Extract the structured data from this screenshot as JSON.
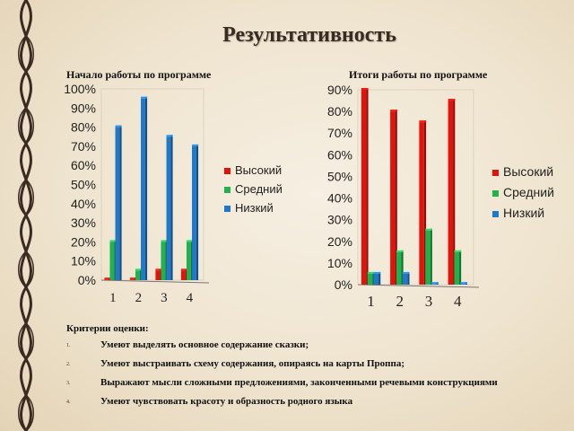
{
  "slide": {
    "title": "Результативность"
  },
  "colors": {
    "high": "#e3120b",
    "medium": "#22b14c",
    "low": "#1f78c8"
  },
  "chart_data": [
    {
      "type": "bar",
      "title": "Начало работы по программе",
      "categories": [
        "1",
        "2",
        "3",
        "4"
      ],
      "series": [
        {
          "name": "Высокий",
          "values": [
            0,
            0,
            5,
            5
          ]
        },
        {
          "name": "Средний",
          "values": [
            20,
            5,
            20,
            20
          ]
        },
        {
          "name": "Низкий",
          "values": [
            80,
            95,
            75,
            70
          ]
        }
      ],
      "ylim": [
        0,
        100
      ],
      "yticks": [
        "0%",
        "10%",
        "20%",
        "30%",
        "40%",
        "50%",
        "60%",
        "70%",
        "80%",
        "90%",
        "100%"
      ],
      "legend": "right",
      "grid": false
    },
    {
      "type": "bar",
      "title": "Итоги работы по программе",
      "categories": [
        "1",
        "2",
        "3",
        "4"
      ],
      "series": [
        {
          "name": "Высокий",
          "values": [
            90,
            80,
            75,
            85
          ]
        },
        {
          "name": "Средний",
          "values": [
            5,
            15,
            25,
            15
          ]
        },
        {
          "name": "Низкий",
          "values": [
            5,
            5,
            0,
            0
          ]
        }
      ],
      "ylim": [
        0,
        90
      ],
      "yticks": [
        "0%",
        "10%",
        "20%",
        "30%",
        "40%",
        "50%",
        "60%",
        "70%",
        "80%",
        "90%"
      ],
      "legend": "right",
      "grid": false
    }
  ],
  "criteria": {
    "title": "Критерии оценки:",
    "items": [
      {
        "num": "1.",
        "text": "Умеют выделять основное содержание сказки;"
      },
      {
        "num": "2.",
        "text": "Умеют выстраивать схему содержания, опираясь на карты Проппа;"
      },
      {
        "num": "3.",
        "text": "Выражают мысли сложными предложениями, законченными речевыми конструкциями"
      },
      {
        "num": "4.",
        "text": "Умеют чувствовать красоту и образность родного языка"
      }
    ]
  }
}
